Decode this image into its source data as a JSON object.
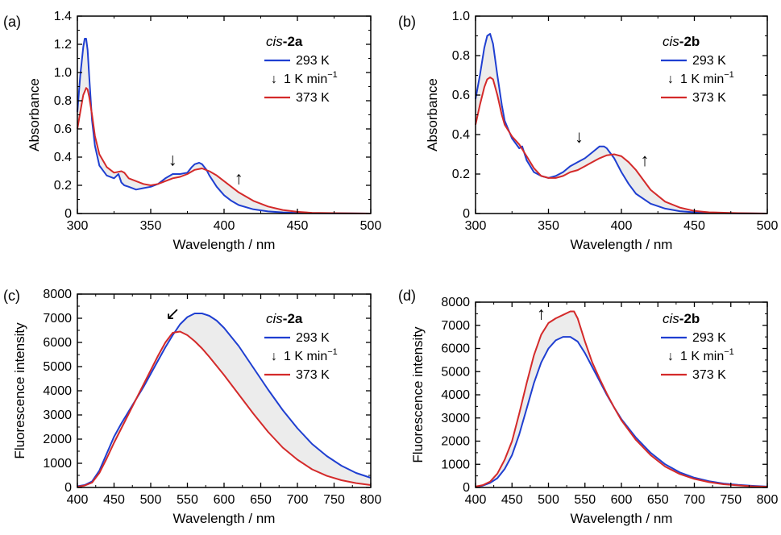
{
  "chart_data": [
    {
      "panel": "(a)",
      "type": "line",
      "compound_prefix": "cis",
      "compound_suffix": "-2a",
      "xlabel": "Wavelength / nm",
      "ylabel": "Absorbance",
      "xlim": [
        300,
        500
      ],
      "ylim": [
        0,
        1.4
      ],
      "xticks": [
        "300",
        "350",
        "400",
        "450",
        "500"
      ],
      "yticks": [
        "0",
        "0.2",
        "0.4",
        "0.6",
        "0.8",
        "1.0",
        "1.2",
        "1.4"
      ],
      "legend": [
        "293 K",
        "1 K min",
        "373 K"
      ],
      "legend_superscript": "−1",
      "legend_arrow": "↓",
      "arrows": [
        {
          "glyph": "↓",
          "x": 365,
          "y": 0.34
        },
        {
          "glyph": "↑",
          "x": 410,
          "y": 0.21
        }
      ],
      "series": [
        {
          "name": "293 K",
          "color": "#1f3fd1",
          "x": [
            300,
            302,
            304,
            305,
            306,
            307,
            308,
            310,
            312,
            315,
            320,
            325,
            328,
            330,
            332,
            335,
            340,
            345,
            350,
            355,
            360,
            365,
            370,
            375,
            378,
            380,
            383,
            385,
            388,
            390,
            395,
            400,
            405,
            410,
            420,
            430,
            440,
            450,
            460,
            480,
            500
          ],
          "y": [
            0.72,
            0.98,
            1.18,
            1.24,
            1.24,
            1.16,
            0.98,
            0.66,
            0.48,
            0.34,
            0.27,
            0.25,
            0.28,
            0.22,
            0.2,
            0.19,
            0.17,
            0.18,
            0.19,
            0.21,
            0.25,
            0.28,
            0.28,
            0.29,
            0.33,
            0.35,
            0.36,
            0.35,
            0.31,
            0.27,
            0.19,
            0.13,
            0.09,
            0.06,
            0.03,
            0.015,
            0.008,
            0.004,
            0.002,
            0.001,
            0.0
          ]
        },
        {
          "name": "373 K",
          "color": "#d42a2a",
          "x": [
            300,
            302,
            304,
            306,
            307,
            308,
            310,
            312,
            315,
            320,
            325,
            330,
            332,
            335,
            340,
            345,
            350,
            355,
            360,
            365,
            370,
            375,
            380,
            385,
            390,
            395,
            400,
            405,
            410,
            420,
            430,
            440,
            450,
            460,
            480,
            500
          ],
          "y": [
            0.6,
            0.72,
            0.84,
            0.89,
            0.88,
            0.83,
            0.7,
            0.55,
            0.42,
            0.33,
            0.29,
            0.3,
            0.29,
            0.25,
            0.23,
            0.21,
            0.2,
            0.21,
            0.23,
            0.25,
            0.26,
            0.28,
            0.31,
            0.32,
            0.3,
            0.27,
            0.23,
            0.19,
            0.15,
            0.09,
            0.05,
            0.025,
            0.012,
            0.005,
            0.002,
            0.0
          ]
        }
      ]
    },
    {
      "panel": "(b)",
      "type": "line",
      "compound_prefix": "cis",
      "compound_suffix": "-2b",
      "xlabel": "Wavelength / nm",
      "ylabel": "Absorbance",
      "xlim": [
        300,
        500
      ],
      "ylim": [
        0,
        1.0
      ],
      "xticks": [
        "300",
        "350",
        "400",
        "450",
        "500"
      ],
      "yticks": [
        "0",
        "0.2",
        "0.4",
        "0.6",
        "0.8",
        "1.0"
      ],
      "legend": [
        "293 K",
        "1 K min",
        "373 K"
      ],
      "legend_superscript": "−1",
      "legend_arrow": "↓",
      "arrows": [
        {
          "glyph": "↓",
          "x": 371,
          "y": 0.36
        },
        {
          "glyph": "↑",
          "x": 416,
          "y": 0.24
        }
      ],
      "series": [
        {
          "name": "293 K",
          "color": "#1f3fd1",
          "x": [
            300,
            303,
            306,
            308,
            310,
            312,
            315,
            318,
            320,
            325,
            330,
            332,
            335,
            340,
            345,
            350,
            355,
            360,
            365,
            370,
            375,
            380,
            385,
            388,
            390,
            395,
            400,
            405,
            410,
            420,
            430,
            440,
            450,
            460,
            480,
            500
          ],
          "y": [
            0.58,
            0.7,
            0.84,
            0.9,
            0.91,
            0.86,
            0.7,
            0.55,
            0.47,
            0.38,
            0.33,
            0.34,
            0.27,
            0.21,
            0.19,
            0.18,
            0.19,
            0.21,
            0.24,
            0.26,
            0.28,
            0.31,
            0.34,
            0.34,
            0.33,
            0.28,
            0.21,
            0.15,
            0.1,
            0.05,
            0.025,
            0.012,
            0.006,
            0.003,
            0.001,
            0.0
          ]
        },
        {
          "name": "373 K",
          "color": "#d42a2a",
          "x": [
            300,
            303,
            306,
            308,
            310,
            312,
            315,
            318,
            320,
            325,
            330,
            335,
            340,
            345,
            350,
            355,
            360,
            365,
            370,
            375,
            380,
            385,
            390,
            395,
            400,
            405,
            410,
            420,
            430,
            440,
            450,
            460,
            480,
            500
          ],
          "y": [
            0.45,
            0.55,
            0.64,
            0.68,
            0.69,
            0.68,
            0.6,
            0.5,
            0.45,
            0.39,
            0.35,
            0.29,
            0.23,
            0.19,
            0.18,
            0.18,
            0.19,
            0.21,
            0.22,
            0.24,
            0.26,
            0.28,
            0.295,
            0.3,
            0.29,
            0.26,
            0.22,
            0.12,
            0.06,
            0.03,
            0.013,
            0.006,
            0.002,
            0.0
          ]
        }
      ]
    },
    {
      "panel": "(c)",
      "type": "line",
      "compound_prefix": "cis",
      "compound_suffix": "-2a",
      "xlabel": "Wavelength / nm",
      "ylabel": "Fluorescence intensity",
      "xlim": [
        400,
        800
      ],
      "ylim": [
        0,
        8000
      ],
      "xticks": [
        "400",
        "450",
        "500",
        "550",
        "600",
        "650",
        "700",
        "750",
        "800"
      ],
      "yticks": [
        "0",
        "1000",
        "2000",
        "3000",
        "4000",
        "5000",
        "6000",
        "7000",
        "8000"
      ],
      "legend": [
        "293 K",
        "1 K min",
        "373 K"
      ],
      "legend_superscript": "−1",
      "legend_arrow": "↓",
      "arrows": [
        {
          "glyph": "↙",
          "x": 530,
          "y": 6950
        }
      ],
      "series": [
        {
          "name": "293 K",
          "color": "#1f3fd1",
          "x": [
            400,
            410,
            420,
            430,
            440,
            450,
            460,
            470,
            480,
            490,
            500,
            510,
            520,
            530,
            540,
            550,
            560,
            570,
            580,
            590,
            600,
            620,
            640,
            660,
            680,
            700,
            720,
            740,
            760,
            780,
            800
          ],
          "y": [
            50,
            100,
            250,
            700,
            1400,
            2100,
            2650,
            3150,
            3650,
            4150,
            4700,
            5250,
            5800,
            6300,
            6750,
            7050,
            7200,
            7200,
            7100,
            6900,
            6600,
            5850,
            4950,
            4050,
            3200,
            2450,
            1800,
            1300,
            900,
            600,
            400
          ]
        },
        {
          "name": "373 K",
          "color": "#d42a2a",
          "x": [
            400,
            410,
            420,
            430,
            440,
            450,
            460,
            470,
            480,
            490,
            500,
            510,
            520,
            530,
            540,
            550,
            560,
            570,
            580,
            600,
            620,
            640,
            660,
            680,
            700,
            720,
            740,
            760,
            780,
            800
          ],
          "y": [
            30,
            80,
            200,
            600,
            1200,
            1850,
            2450,
            3050,
            3650,
            4250,
            4850,
            5450,
            6000,
            6400,
            6450,
            6300,
            6050,
            5750,
            5400,
            4650,
            3850,
            3050,
            2300,
            1650,
            1150,
            750,
            480,
            300,
            180,
            100
          ]
        }
      ]
    },
    {
      "panel": "(d)",
      "type": "line",
      "compound_prefix": "cis",
      "compound_suffix": "-2b",
      "xlabel": "Wavelength / nm",
      "ylabel": "Fluorescence intensity",
      "xlim": [
        400,
        800
      ],
      "ylim": [
        0,
        8000
      ],
      "xticks": [
        "400",
        "450",
        "500",
        "550",
        "600",
        "650",
        "700",
        "750",
        "800"
      ],
      "yticks": [
        "0",
        "1000",
        "2000",
        "3000",
        "4000",
        "5000",
        "6000",
        "7000",
        "8000"
      ],
      "legend": [
        "293 K",
        "1 K min",
        "373 K"
      ],
      "legend_superscript": "−1",
      "legend_arrow": "↓",
      "arrows": [
        {
          "glyph": "↑",
          "x": 490,
          "y": 7250
        }
      ],
      "series": [
        {
          "name": "293 K",
          "color": "#1f3fd1",
          "x": [
            400,
            410,
            420,
            430,
            440,
            450,
            460,
            470,
            480,
            490,
            500,
            510,
            520,
            530,
            540,
            550,
            560,
            570,
            580,
            590,
            600,
            620,
            640,
            660,
            680,
            700,
            720,
            740,
            760,
            780,
            800
          ],
          "y": [
            30,
            80,
            200,
            400,
            800,
            1400,
            2300,
            3400,
            4500,
            5400,
            6000,
            6350,
            6500,
            6500,
            6300,
            5800,
            5200,
            4600,
            4000,
            3450,
            2950,
            2150,
            1500,
            1000,
            650,
            420,
            270,
            170,
            110,
            70,
            40
          ]
        },
        {
          "name": "373 K",
          "color": "#d42a2a",
          "x": [
            400,
            410,
            420,
            430,
            440,
            450,
            460,
            470,
            480,
            490,
            500,
            510,
            520,
            530,
            535,
            540,
            550,
            560,
            570,
            580,
            590,
            600,
            620,
            640,
            660,
            680,
            700,
            720,
            740,
            760,
            780,
            800
          ],
          "y": [
            40,
            100,
            250,
            600,
            1200,
            2000,
            3200,
            4500,
            5700,
            6600,
            7100,
            7300,
            7450,
            7600,
            7600,
            7300,
            6300,
            5400,
            4700,
            4050,
            3450,
            2900,
            2050,
            1400,
            900,
            580,
            370,
            230,
            140,
            90,
            50,
            30
          ]
        }
      ]
    }
  ]
}
